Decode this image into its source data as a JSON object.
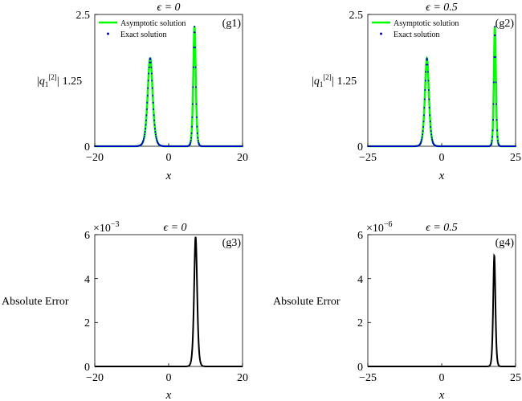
{
  "chart_data": [
    {
      "id": "g1",
      "type": "line",
      "panel_label": "(g1)",
      "title": "ϵ = 0",
      "xlabel": "x",
      "ylabel": "|q₁[2]| 1.25",
      "ylabel_parts": {
        "q": "q",
        "sub": "1",
        "sup": "[2]",
        "value": "1.25"
      },
      "xlim": [
        -20,
        20
      ],
      "ylim": [
        0,
        2.5
      ],
      "xticks": [
        "−20",
        "0",
        "20"
      ],
      "yticks": [
        "0",
        "2.5"
      ],
      "scale_note": "",
      "legend": {
        "placement": "top-left",
        "entries": [
          "Asymptotic solution",
          "Exact solution"
        ]
      },
      "colors": {
        "asymptotic": "#00ff00",
        "exact": "#0000cc"
      },
      "peaks": [
        {
          "center": -5,
          "height": 1.67,
          "width": 0.9
        },
        {
          "center": 7,
          "height": 2.27,
          "width": 0.45
        }
      ]
    },
    {
      "id": "g2",
      "type": "line",
      "panel_label": "(g2)",
      "title": "ϵ = 0.5",
      "xlabel": "x",
      "ylabel": "|q₁[2]| 1.25",
      "ylabel_parts": {
        "q": "q",
        "sub": "1",
        "sup": "[2]",
        "value": "1.25"
      },
      "xlim": [
        -25,
        25
      ],
      "ylim": [
        0,
        2.5
      ],
      "xticks": [
        "−25",
        "0",
        "25"
      ],
      "yticks": [
        "0",
        "2.5"
      ],
      "scale_note": "",
      "legend": {
        "placement": "top-left",
        "entries": [
          "Asymptotic solution",
          "Exact solution"
        ]
      },
      "colors": {
        "asymptotic": "#00ff00",
        "exact": "#0000cc"
      },
      "peaks": [
        {
          "center": -5,
          "height": 1.67,
          "width": 0.9
        },
        {
          "center": 18,
          "height": 2.27,
          "width": 0.45
        }
      ]
    },
    {
      "id": "g3",
      "type": "line",
      "panel_label": "(g3)",
      "title": "ϵ = 0",
      "xlabel": "x",
      "ylabel": "Absolute Error",
      "xlim": [
        -20,
        20
      ],
      "ylim": [
        0,
        6
      ],
      "xticks": [
        "−20",
        "0",
        "20"
      ],
      "yticks": [
        "0",
        "2",
        "4",
        "6"
      ],
      "scale_note": "×10",
      "scale_exp": "−3",
      "colors": {
        "error": "#000000"
      },
      "peaks": [
        {
          "center": 7.3,
          "height": 5.9,
          "width": 0.55
        }
      ]
    },
    {
      "id": "g4",
      "type": "line",
      "panel_label": "(g4)",
      "title": "ϵ = 0.5",
      "xlabel": "x",
      "ylabel": "Absolute Error",
      "xlim": [
        -25,
        25
      ],
      "ylim": [
        0,
        6
      ],
      "xticks": [
        "−25",
        "0",
        "25"
      ],
      "yticks": [
        "0",
        "2",
        "4",
        "6"
      ],
      "scale_note": "×10",
      "scale_exp": "−6",
      "colors": {
        "error": "#000000"
      },
      "peaks": [
        {
          "center": 17.8,
          "height": 5.05,
          "width": 0.5
        }
      ]
    }
  ]
}
